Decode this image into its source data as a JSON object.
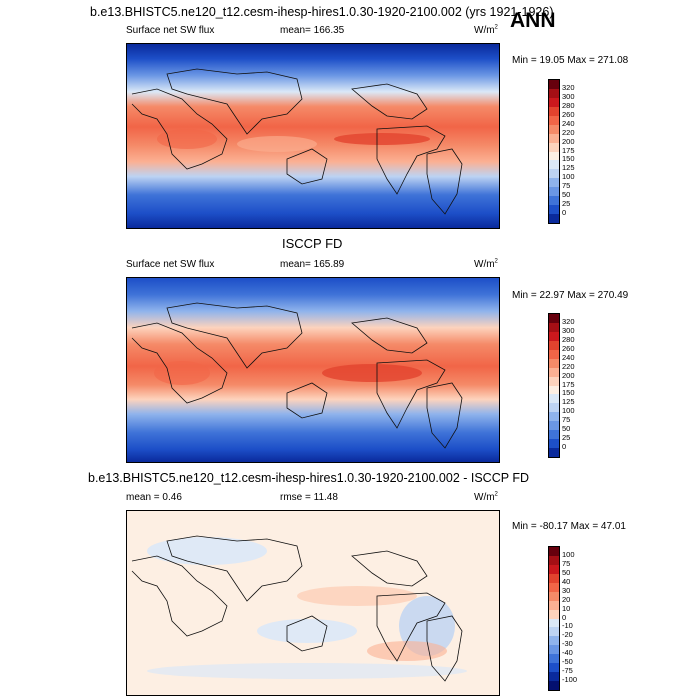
{
  "page": {
    "title": "b.e13.BHISTC5.ne120_t12.cesm-ihesp-hires1.0.30-1920-2100.002 (yrs 1921-1926)",
    "season": "ANN"
  },
  "panels": [
    {
      "heading": "",
      "left_label": "Surface net SW flux",
      "center_label": "mean= 166.35",
      "units": "W/m",
      "units_sup": "2",
      "minmax": "Min = 19.05 Max = 271.08",
      "colorbar_labels": [
        "320",
        "300",
        "280",
        "260",
        "240",
        "220",
        "200",
        "175",
        "150",
        "125",
        "100",
        "75",
        "50",
        "25",
        "0"
      ],
      "colorbar_colors": [
        "#67000d",
        "#a50f15",
        "#cb181d",
        "#e2432e",
        "#f16547",
        "#f58a68",
        "#fbb093",
        "#fdd3bd",
        "#fdefe3",
        "#dbe8f7",
        "#bdd3f3",
        "#8fb3ec",
        "#6a96e4",
        "#3f73d8",
        "#1d4fc8",
        "#0a2a9c"
      ]
    },
    {
      "heading": "ISCCP FD",
      "left_label": "Surface net SW flux",
      "center_label": "mean= 165.89",
      "units": "W/m",
      "units_sup": "2",
      "minmax": "Min = 22.97 Max = 270.49",
      "colorbar_labels": [
        "320",
        "300",
        "280",
        "260",
        "240",
        "220",
        "200",
        "175",
        "150",
        "125",
        "100",
        "75",
        "50",
        "25",
        "0"
      ],
      "colorbar_colors": [
        "#67000d",
        "#a50f15",
        "#cb181d",
        "#e2432e",
        "#f16547",
        "#f58a68",
        "#fbb093",
        "#fdd3bd",
        "#fdefe3",
        "#dbe8f7",
        "#bdd3f3",
        "#8fb3ec",
        "#6a96e4",
        "#3f73d8",
        "#1d4fc8",
        "#0a2a9c"
      ]
    },
    {
      "heading": "b.e13.BHISTC5.ne120_t12.cesm-ihesp-hires1.0.30-1920-2100.002 - ISCCP FD",
      "left_label": "mean =  0.46",
      "center_label": "rmse =  11.48",
      "units": "W/m",
      "units_sup": "2",
      "minmax": "Min = -80.17 Max =  47.01",
      "colorbar_labels": [
        "100",
        "75",
        "50",
        "40",
        "30",
        "20",
        "10",
        "0",
        "-10",
        "-20",
        "-30",
        "-40",
        "-50",
        "-75",
        "-100"
      ],
      "colorbar_colors": [
        "#67000d",
        "#a50f15",
        "#cb181d",
        "#e2432e",
        "#f16547",
        "#f58a68",
        "#fbb093",
        "#fdd3bd",
        "#dbe8f7",
        "#bdd3f3",
        "#8fb3ec",
        "#6a96e4",
        "#3f73d8",
        "#1d4fc8",
        "#0a2a9c",
        "#041070"
      ]
    }
  ],
  "chart_data": [
    {
      "type": "heatmap",
      "title": "Surface net SW flux",
      "subtitle": "mean= 166.35",
      "units": "W/m2",
      "min": 19.05,
      "max": 271.08,
      "levels": [
        0,
        25,
        50,
        75,
        100,
        125,
        150,
        175,
        200,
        220,
        240,
        260,
        280,
        300,
        320
      ]
    },
    {
      "type": "heatmap",
      "title": "Surface net SW flux",
      "subtitle": "mean= 165.89",
      "units": "W/m2",
      "min": 22.97,
      "max": 270.49,
      "levels": [
        0,
        25,
        50,
        75,
        100,
        125,
        150,
        175,
        200,
        220,
        240,
        260,
        280,
        300,
        320
      ]
    },
    {
      "type": "heatmap",
      "title": "b.e13.BHISTC5.ne120_t12.cesm-ihesp-hires1.0.30-1920-2100.002 - ISCCP FD",
      "subtitle": "mean =  0.46, rmse =  11.48",
      "units": "W/m2",
      "min": -80.17,
      "max": 47.01,
      "levels": [
        -100,
        -75,
        -50,
        -40,
        -30,
        -20,
        -10,
        0,
        10,
        20,
        30,
        40,
        50,
        75,
        100
      ]
    }
  ]
}
